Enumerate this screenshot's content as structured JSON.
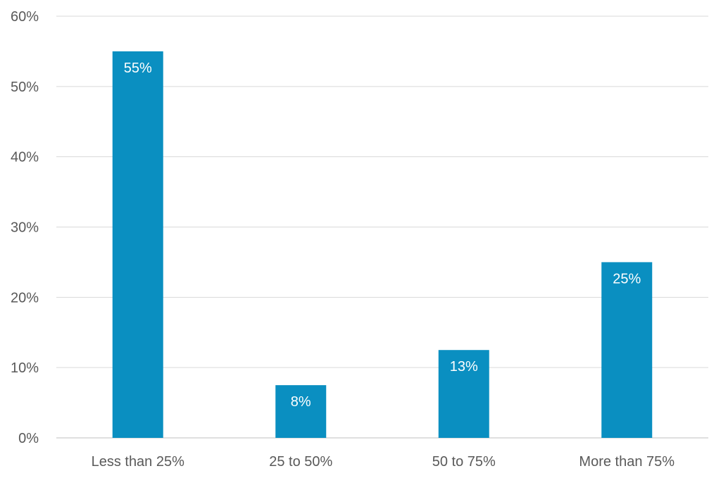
{
  "chart_data": {
    "type": "bar",
    "title": "",
    "xlabel": "",
    "ylabel": "",
    "categories": [
      "Less than 25%",
      "25 to 50%",
      "50 to 75%",
      "More than 75%"
    ],
    "series": [
      {
        "values": [
          55,
          7.5,
          12.5,
          25
        ],
        "data_labels": [
          "55%",
          "8%",
          "13%",
          "25%"
        ],
        "color": "#0a8fc1"
      }
    ],
    "ylim": [
      0,
      60
    ],
    "y_ticks": [
      0,
      10,
      20,
      30,
      40,
      50,
      60
    ],
    "y_tick_labels": [
      "0%",
      "10%",
      "20%",
      "30%",
      "40%",
      "50%",
      "60%"
    ],
    "grid": true,
    "legend": "none"
  }
}
